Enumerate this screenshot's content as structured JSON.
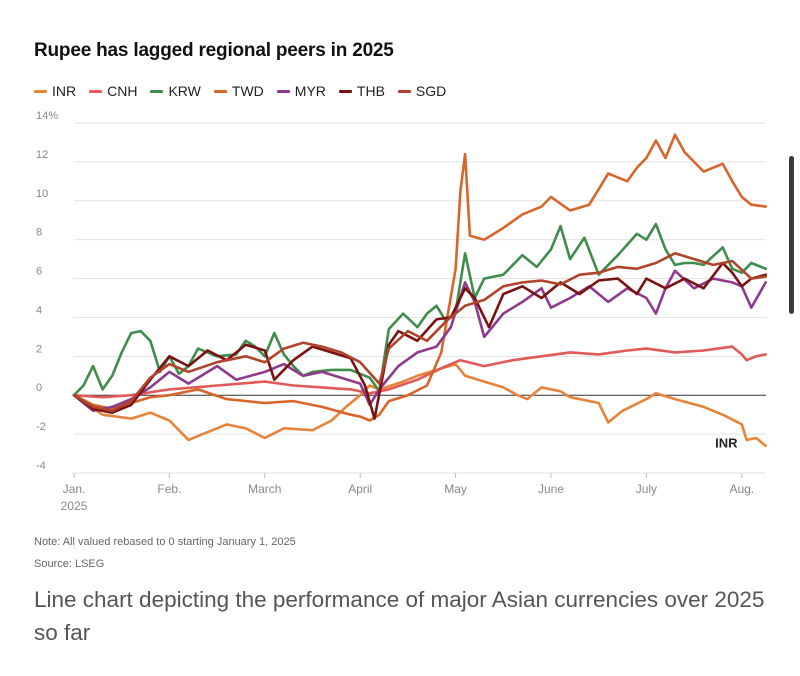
{
  "chart_data": {
    "type": "line",
    "title": "Rupee has lagged regional peers in 2025",
    "xlabel": "",
    "ylabel": "",
    "x_range": [
      0,
      7.2
    ],
    "ylim": [
      -4,
      14
    ],
    "yticks": [
      {
        "value": 14,
        "label": "14%"
      },
      {
        "value": 12,
        "label": "12"
      },
      {
        "value": 10,
        "label": "10"
      },
      {
        "value": 8,
        "label": "8"
      },
      {
        "value": 6,
        "label": "6"
      },
      {
        "value": 4,
        "label": "4"
      },
      {
        "value": 2,
        "label": "2"
      },
      {
        "value": 0,
        "label": "0"
      },
      {
        "value": -2,
        "label": "-2"
      },
      {
        "value": -4,
        "label": "-4"
      }
    ],
    "xticks": [
      {
        "value": 0,
        "label": "Jan.",
        "sublabel": "2025"
      },
      {
        "value": 1,
        "label": "Feb."
      },
      {
        "value": 2,
        "label": "March"
      },
      {
        "value": 3,
        "label": "April"
      },
      {
        "value": 4,
        "label": "May"
      },
      {
        "value": 5,
        "label": "June"
      },
      {
        "value": 6,
        "label": "July"
      },
      {
        "value": 7,
        "label": "Aug."
      }
    ],
    "annotation": {
      "text": "INR",
      "x": 6.72,
      "y": -2.7
    },
    "series": [
      {
        "name": "INR",
        "color": "#e8833a",
        "points": [
          [
            0,
            0
          ],
          [
            0.3,
            -1.0
          ],
          [
            0.6,
            -1.2
          ],
          [
            0.8,
            -0.9
          ],
          [
            1.0,
            -1.3
          ],
          [
            1.1,
            -1.8
          ],
          [
            1.2,
            -2.3
          ],
          [
            1.35,
            -2.0
          ],
          [
            1.6,
            -1.5
          ],
          [
            1.8,
            -1.7
          ],
          [
            2.0,
            -2.2
          ],
          [
            2.2,
            -1.7
          ],
          [
            2.5,
            -1.8
          ],
          [
            2.7,
            -1.3
          ],
          [
            2.85,
            -0.6
          ],
          [
            3.0,
            0.0
          ],
          [
            3.1,
            0.5
          ],
          [
            3.2,
            0.3
          ],
          [
            3.45,
            0.7
          ],
          [
            3.6,
            1.0
          ],
          [
            3.8,
            1.3
          ],
          [
            4.0,
            1.6
          ],
          [
            4.1,
            1.0
          ],
          [
            4.3,
            0.7
          ],
          [
            4.5,
            0.4
          ],
          [
            4.65,
            0.0
          ],
          [
            4.75,
            -0.2
          ],
          [
            4.9,
            0.4
          ],
          [
            5.1,
            0.2
          ],
          [
            5.2,
            -0.1
          ],
          [
            5.5,
            -0.4
          ],
          [
            5.6,
            -1.4
          ],
          [
            5.75,
            -0.8
          ],
          [
            6.0,
            -0.2
          ],
          [
            6.1,
            0.1
          ],
          [
            6.3,
            -0.2
          ],
          [
            6.6,
            -0.6
          ],
          [
            6.8,
            -1.0
          ],
          [
            7.0,
            -1.5
          ],
          [
            7.05,
            -2.3
          ],
          [
            7.15,
            -2.2
          ],
          [
            7.25,
            -2.6
          ]
        ]
      },
      {
        "name": "CNH",
        "color": "#e05a58",
        "points": [
          [
            0,
            0
          ],
          [
            0.3,
            -0.1
          ],
          [
            0.6,
            0.0
          ],
          [
            1.0,
            0.3
          ],
          [
            1.5,
            0.5
          ],
          [
            2.0,
            0.7
          ],
          [
            2.3,
            0.5
          ],
          [
            2.6,
            0.4
          ],
          [
            2.9,
            0.3
          ],
          [
            3.1,
            0.1
          ],
          [
            3.3,
            0.3
          ],
          [
            3.6,
            0.8
          ],
          [
            3.9,
            1.5
          ],
          [
            4.05,
            1.8
          ],
          [
            4.3,
            1.5
          ],
          [
            4.6,
            1.8
          ],
          [
            4.9,
            2.0
          ],
          [
            5.2,
            2.2
          ],
          [
            5.5,
            2.1
          ],
          [
            5.8,
            2.3
          ],
          [
            6.0,
            2.4
          ],
          [
            6.3,
            2.2
          ],
          [
            6.6,
            2.3
          ],
          [
            6.9,
            2.5
          ],
          [
            7.0,
            2.1
          ],
          [
            7.05,
            1.8
          ],
          [
            7.15,
            2.0
          ],
          [
            7.25,
            2.1
          ]
        ]
      },
      {
        "name": "KRW",
        "color": "#3f8d4d",
        "points": [
          [
            0,
            0
          ],
          [
            0.1,
            0.5
          ],
          [
            0.2,
            1.5
          ],
          [
            0.3,
            0.3
          ],
          [
            0.4,
            1.0
          ],
          [
            0.5,
            2.2
          ],
          [
            0.6,
            3.2
          ],
          [
            0.7,
            3.3
          ],
          [
            0.8,
            2.8
          ],
          [
            0.9,
            1.2
          ],
          [
            1.0,
            2.0
          ],
          [
            1.1,
            1.1
          ],
          [
            1.2,
            1.5
          ],
          [
            1.3,
            2.4
          ],
          [
            1.5,
            2.0
          ],
          [
            1.7,
            2.1
          ],
          [
            1.8,
            2.8
          ],
          [
            1.9,
            2.5
          ],
          [
            2.0,
            2.0
          ],
          [
            2.1,
            3.2
          ],
          [
            2.2,
            2.1
          ],
          [
            2.3,
            1.5
          ],
          [
            2.4,
            1.0
          ],
          [
            2.5,
            1.2
          ],
          [
            2.7,
            1.3
          ],
          [
            2.9,
            1.3
          ],
          [
            3.05,
            1.0
          ],
          [
            3.1,
            0.9
          ],
          [
            3.2,
            0.2
          ],
          [
            3.3,
            3.4
          ],
          [
            3.45,
            4.2
          ],
          [
            3.6,
            3.5
          ],
          [
            3.7,
            4.2
          ],
          [
            3.8,
            4.6
          ],
          [
            3.9,
            3.8
          ],
          [
            4.0,
            4.3
          ],
          [
            4.1,
            7.3
          ],
          [
            4.2,
            5.0
          ],
          [
            4.3,
            6.0
          ],
          [
            4.5,
            6.2
          ],
          [
            4.7,
            7.2
          ],
          [
            4.85,
            6.6
          ],
          [
            5.0,
            7.5
          ],
          [
            5.1,
            8.7
          ],
          [
            5.2,
            7.0
          ],
          [
            5.35,
            8.1
          ],
          [
            5.5,
            6.2
          ],
          [
            5.7,
            7.2
          ],
          [
            5.9,
            8.3
          ],
          [
            6.0,
            8.0
          ],
          [
            6.1,
            8.8
          ],
          [
            6.2,
            7.5
          ],
          [
            6.3,
            6.7
          ],
          [
            6.4,
            6.8
          ],
          [
            6.5,
            6.8
          ],
          [
            6.6,
            6.7
          ],
          [
            6.8,
            7.6
          ],
          [
            6.9,
            6.5
          ],
          [
            7.0,
            6.3
          ],
          [
            7.1,
            6.8
          ],
          [
            7.25,
            6.5
          ]
        ]
      },
      {
        "name": "TWD",
        "color": "#d8652a",
        "points": [
          [
            0,
            0
          ],
          [
            0.2,
            -0.5
          ],
          [
            0.4,
            -0.7
          ],
          [
            0.6,
            -0.4
          ],
          [
            0.8,
            -0.1
          ],
          [
            1.0,
            0.0
          ],
          [
            1.3,
            0.3
          ],
          [
            1.6,
            -0.2
          ],
          [
            2.0,
            -0.4
          ],
          [
            2.3,
            -0.3
          ],
          [
            2.6,
            -0.6
          ],
          [
            2.9,
            -1.0
          ],
          [
            3.0,
            -1.1
          ],
          [
            3.1,
            -1.3
          ],
          [
            3.2,
            -1.0
          ],
          [
            3.3,
            -0.3
          ],
          [
            3.5,
            0.0
          ],
          [
            3.7,
            0.5
          ],
          [
            3.85,
            2.2
          ],
          [
            4.0,
            6.5
          ],
          [
            4.05,
            10.5
          ],
          [
            4.1,
            12.4
          ],
          [
            4.15,
            8.2
          ],
          [
            4.3,
            8.0
          ],
          [
            4.5,
            8.6
          ],
          [
            4.7,
            9.3
          ],
          [
            4.9,
            9.7
          ],
          [
            5.0,
            10.2
          ],
          [
            5.2,
            9.5
          ],
          [
            5.4,
            9.8
          ],
          [
            5.6,
            11.4
          ],
          [
            5.8,
            11.0
          ],
          [
            5.9,
            11.7
          ],
          [
            6.0,
            12.2
          ],
          [
            6.1,
            13.1
          ],
          [
            6.2,
            12.2
          ],
          [
            6.3,
            13.4
          ],
          [
            6.4,
            12.5
          ],
          [
            6.5,
            12.0
          ],
          [
            6.6,
            11.5
          ],
          [
            6.8,
            11.9
          ],
          [
            6.9,
            11.0
          ],
          [
            7.0,
            10.2
          ],
          [
            7.1,
            9.8
          ],
          [
            7.25,
            9.7
          ]
        ]
      },
      {
        "name": "MYR",
        "color": "#8e3a8f",
        "points": [
          [
            0,
            0
          ],
          [
            0.2,
            -0.8
          ],
          [
            0.4,
            -0.6
          ],
          [
            0.6,
            -0.2
          ],
          [
            0.8,
            0.4
          ],
          [
            1.0,
            1.2
          ],
          [
            1.2,
            0.6
          ],
          [
            1.5,
            1.5
          ],
          [
            1.7,
            0.8
          ],
          [
            2.0,
            1.2
          ],
          [
            2.2,
            1.6
          ],
          [
            2.4,
            1.0
          ],
          [
            2.6,
            1.2
          ],
          [
            2.8,
            0.9
          ],
          [
            3.0,
            0.6
          ],
          [
            3.1,
            -0.5
          ],
          [
            3.2,
            0.3
          ],
          [
            3.4,
            1.5
          ],
          [
            3.6,
            2.2
          ],
          [
            3.8,
            2.5
          ],
          [
            3.95,
            3.5
          ],
          [
            4.1,
            5.8
          ],
          [
            4.2,
            4.8
          ],
          [
            4.3,
            3.0
          ],
          [
            4.5,
            4.2
          ],
          [
            4.7,
            4.8
          ],
          [
            4.9,
            5.5
          ],
          [
            5.0,
            4.5
          ],
          [
            5.2,
            5.0
          ],
          [
            5.4,
            5.6
          ],
          [
            5.6,
            4.8
          ],
          [
            5.8,
            5.5
          ],
          [
            6.0,
            5.0
          ],
          [
            6.1,
            4.2
          ],
          [
            6.2,
            5.5
          ],
          [
            6.3,
            6.4
          ],
          [
            6.5,
            5.5
          ],
          [
            6.7,
            6.0
          ],
          [
            6.9,
            5.8
          ],
          [
            7.0,
            5.6
          ],
          [
            7.1,
            4.5
          ],
          [
            7.25,
            5.8
          ]
        ]
      },
      {
        "name": "THB",
        "color": "#7a1212",
        "points": [
          [
            0,
            0
          ],
          [
            0.2,
            -0.7
          ],
          [
            0.4,
            -0.9
          ],
          [
            0.6,
            -0.5
          ],
          [
            0.8,
            0.8
          ],
          [
            1.0,
            2.0
          ],
          [
            1.2,
            1.5
          ],
          [
            1.4,
            2.3
          ],
          [
            1.6,
            1.8
          ],
          [
            1.8,
            2.6
          ],
          [
            2.0,
            2.3
          ],
          [
            2.1,
            0.8
          ],
          [
            2.3,
            1.8
          ],
          [
            2.5,
            2.5
          ],
          [
            2.7,
            2.2
          ],
          [
            2.9,
            1.9
          ],
          [
            3.05,
            0.5
          ],
          [
            3.15,
            -1.2
          ],
          [
            3.3,
            2.6
          ],
          [
            3.4,
            3.3
          ],
          [
            3.6,
            2.8
          ],
          [
            3.8,
            3.9
          ],
          [
            3.95,
            4.0
          ],
          [
            4.1,
            5.5
          ],
          [
            4.2,
            5.0
          ],
          [
            4.35,
            3.5
          ],
          [
            4.5,
            5.2
          ],
          [
            4.7,
            5.6
          ],
          [
            4.9,
            5.0
          ],
          [
            5.1,
            5.8
          ],
          [
            5.3,
            5.2
          ],
          [
            5.5,
            5.9
          ],
          [
            5.7,
            6.0
          ],
          [
            5.9,
            5.2
          ],
          [
            6.0,
            6.0
          ],
          [
            6.2,
            5.5
          ],
          [
            6.4,
            6.0
          ],
          [
            6.6,
            5.5
          ],
          [
            6.8,
            6.8
          ],
          [
            6.9,
            6.3
          ],
          [
            7.0,
            5.6
          ],
          [
            7.1,
            6.0
          ],
          [
            7.25,
            6.2
          ]
        ]
      },
      {
        "name": "SGD",
        "color": "#b0442a",
        "points": [
          [
            0,
            0
          ],
          [
            0.2,
            -0.6
          ],
          [
            0.4,
            -0.8
          ],
          [
            0.6,
            -0.3
          ],
          [
            0.8,
            0.9
          ],
          [
            1.0,
            1.6
          ],
          [
            1.2,
            1.2
          ],
          [
            1.5,
            1.7
          ],
          [
            1.8,
            2.0
          ],
          [
            2.0,
            1.7
          ],
          [
            2.2,
            2.4
          ],
          [
            2.4,
            2.7
          ],
          [
            2.6,
            2.5
          ],
          [
            2.8,
            2.2
          ],
          [
            3.0,
            1.7
          ],
          [
            3.2,
            0.6
          ],
          [
            3.3,
            2.4
          ],
          [
            3.5,
            3.3
          ],
          [
            3.7,
            2.8
          ],
          [
            3.9,
            3.8
          ],
          [
            4.1,
            4.6
          ],
          [
            4.3,
            4.9
          ],
          [
            4.5,
            5.6
          ],
          [
            4.7,
            5.8
          ],
          [
            4.9,
            5.9
          ],
          [
            5.1,
            5.7
          ],
          [
            5.3,
            6.2
          ],
          [
            5.5,
            6.3
          ],
          [
            5.7,
            6.6
          ],
          [
            5.9,
            6.5
          ],
          [
            6.1,
            6.8
          ],
          [
            6.3,
            7.3
          ],
          [
            6.5,
            7.0
          ],
          [
            6.7,
            6.7
          ],
          [
            6.9,
            6.9
          ],
          [
            7.1,
            6.0
          ],
          [
            7.25,
            6.1
          ]
        ]
      }
    ]
  },
  "footer": {
    "note": "Note: All valued rebased to 0 starting January 1, 2025",
    "source": "Source: LSEG",
    "caption": "Line chart depicting the performance of major Asian currencies over 2025 so far"
  }
}
